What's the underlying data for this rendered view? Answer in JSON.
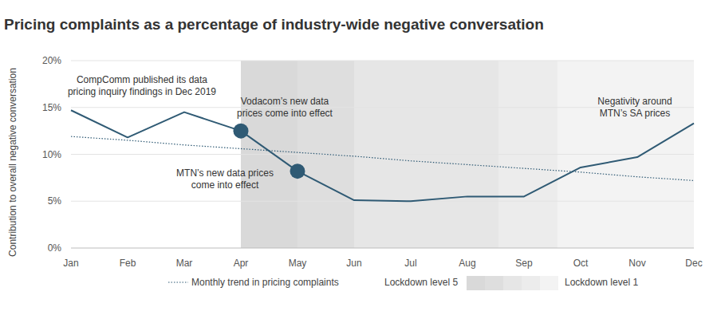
{
  "chart_data": {
    "type": "line",
    "title": "Pricing complaints as a percentage of industry-wide negative conversation",
    "y_label": "Contribution to overall negative conversation",
    "categories": [
      "Jan",
      "Feb",
      "Mar",
      "Apr",
      "May",
      "Jun",
      "Jul",
      "Aug",
      "Sep",
      "Oct",
      "Nov",
      "Dec"
    ],
    "series": [
      {
        "color": "#2f5a74",
        "line_style": "solid",
        "values": [
          14.7,
          11.8,
          14.5,
          12.5,
          8.2,
          5.1,
          5.0,
          5.5,
          5.5,
          8.6,
          9.7,
          13.3
        ]
      },
      {
        "name": "Monthly trend in pricing complaints",
        "color": "#2f5a74",
        "line_style": "dotted",
        "values": [
          11.9,
          11.5,
          11.0,
          10.6,
          10.2,
          9.8,
          9.3,
          8.9,
          8.5,
          8.1,
          7.6,
          7.2
        ]
      }
    ],
    "ylim": [
      0,
      20
    ],
    "yticks": [
      {
        "value": 0,
        "label": "0%"
      },
      {
        "value": 5,
        "label": "5%"
      },
      {
        "value": 10,
        "label": "10%"
      },
      {
        "value": 15,
        "label": "15%"
      },
      {
        "value": 20,
        "label": "20%"
      }
    ],
    "grid": true,
    "annotations": [
      {
        "lines": [
          "CompComm published its data",
          "pricing inquiry findings in Dec 2019"
        ]
      },
      {
        "lines": [
          "Vodacom’s new data",
          "prices come into effect"
        ],
        "category": "Apr"
      },
      {
        "lines": [
          "MTN’s new data prices",
          "come into effect"
        ],
        "category": "May"
      },
      {
        "lines": [
          "Negativity around",
          "MTN’s SA prices"
        ]
      }
    ],
    "lockdown": {
      "label_start": "Lockdown level 5",
      "label_end": "Lockdown level 1",
      "bands": [
        {
          "start": 3,
          "end": 4,
          "color": "#d9d9d9"
        },
        {
          "start": 4,
          "end": 5,
          "color": "#dedede"
        },
        {
          "start": 5,
          "end": 7.55,
          "color": "#e6e6e6"
        },
        {
          "start": 7.55,
          "end": 8.6,
          "color": "#ececec"
        },
        {
          "start": 8.6,
          "end": 11,
          "color": "#f3f3f3"
        }
      ]
    }
  }
}
